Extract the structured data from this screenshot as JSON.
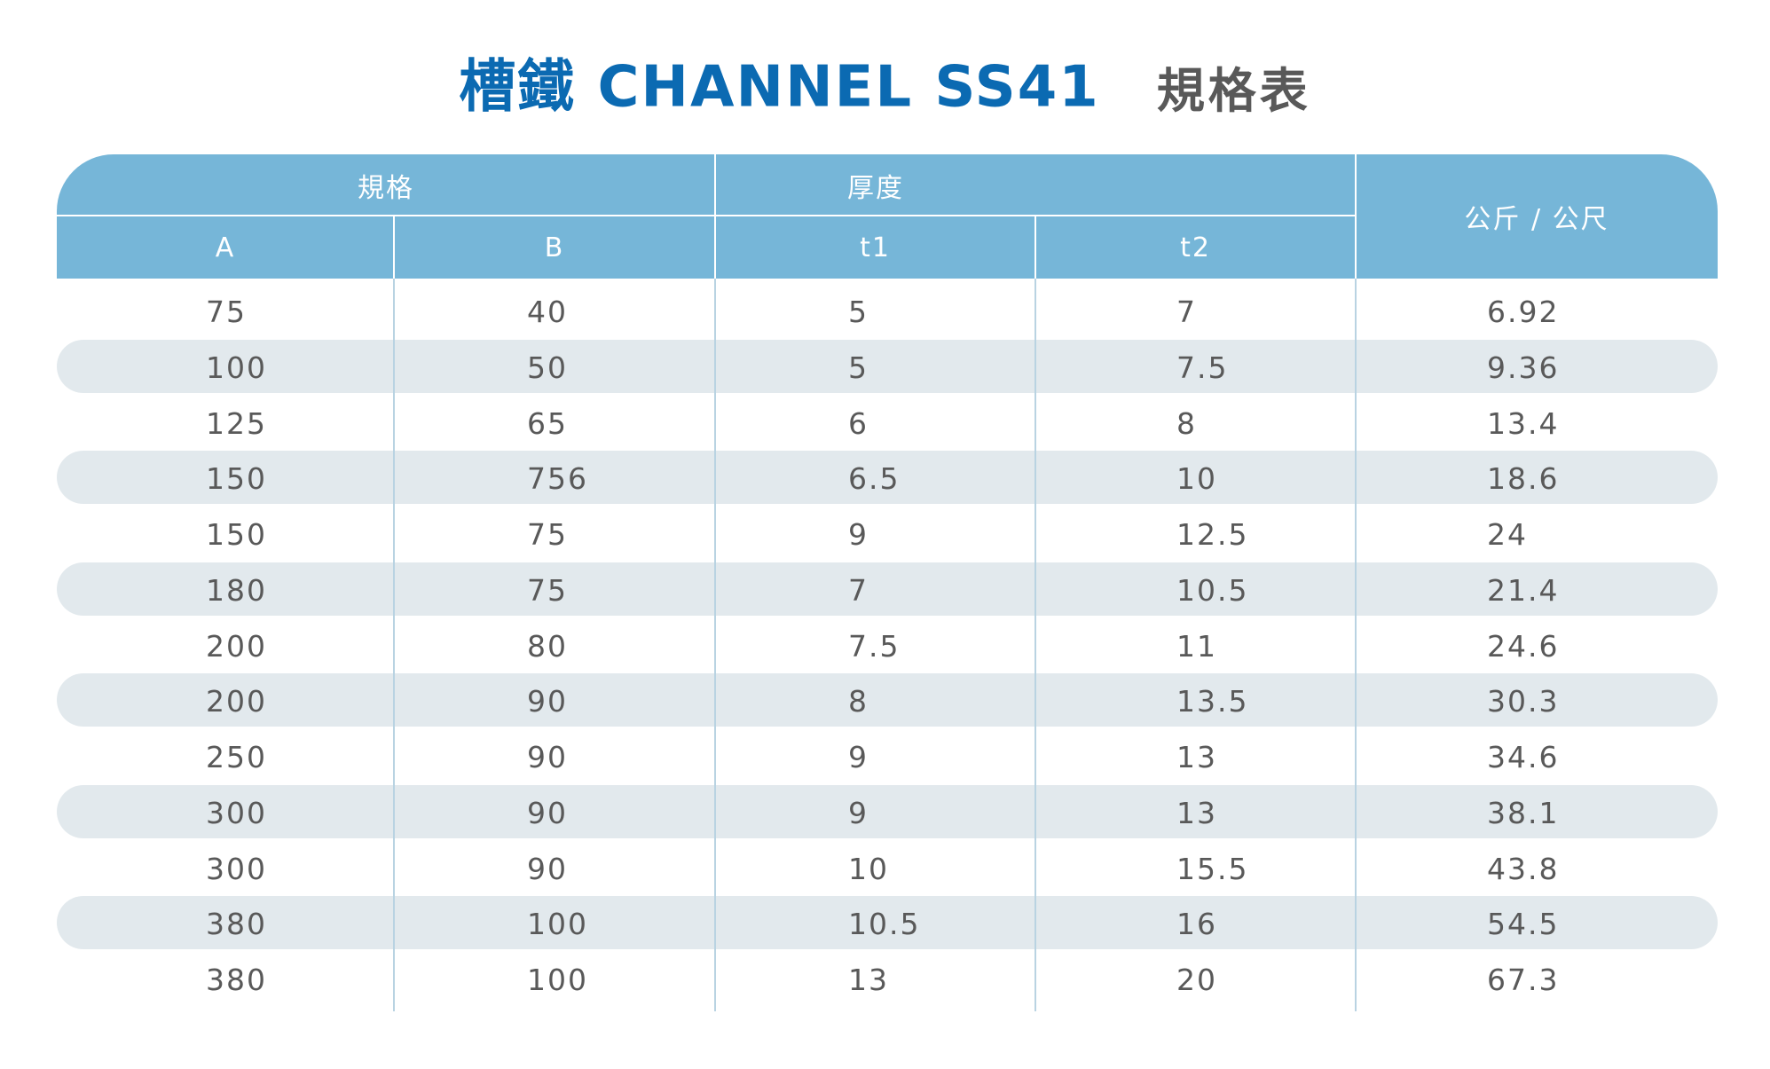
{
  "title": {
    "main": "槽鐵  CHANNEL SS41",
    "sub": "規格表"
  },
  "header": {
    "group_spec": "規格",
    "group_thickness": "厚度",
    "col_a": "A",
    "col_b": "B",
    "col_t1": "t1",
    "col_t2": "t2",
    "col_weight": "公斤 / 公尺"
  },
  "rows": [
    {
      "a": "75",
      "b": "40",
      "t1": "5",
      "t2": "7",
      "w": "6.92"
    },
    {
      "a": "100",
      "b": "50",
      "t1": "5",
      "t2": "7.5",
      "w": "9.36"
    },
    {
      "a": "125",
      "b": "65",
      "t1": "6",
      "t2": "8",
      "w": "13.4"
    },
    {
      "a": "150",
      "b": "756",
      "t1": "6.5",
      "t2": "10",
      "w": "18.6"
    },
    {
      "a": "150",
      "b": "75",
      "t1": "9",
      "t2": "12.5",
      "w": "24"
    },
    {
      "a": "180",
      "b": "75",
      "t1": "7",
      "t2": "10.5",
      "w": "21.4"
    },
    {
      "a": "200",
      "b": "80",
      "t1": "7.5",
      "t2": "11",
      "w": "24.6"
    },
    {
      "a": "200",
      "b": "90",
      "t1": "8",
      "t2": "13.5",
      "w": "30.3"
    },
    {
      "a": "250",
      "b": "90",
      "t1": "9",
      "t2": "13",
      "w": "34.6"
    },
    {
      "a": "300",
      "b": "90",
      "t1": "9",
      "t2": "13",
      "w": "38.1"
    },
    {
      "a": "300",
      "b": "90",
      "t1": "10",
      "t2": "15.5",
      "w": "43.8"
    },
    {
      "a": "380",
      "b": "100",
      "t1": "10.5",
      "t2": "16",
      "w": "54.5"
    },
    {
      "a": "380",
      "b": "100",
      "t1": "13",
      "t2": "20",
      "w": "67.3"
    }
  ],
  "colors": {
    "title_blue": "#0b6ab2",
    "header_blue": "#76b6d8",
    "stripe_gray": "#e2e9ed",
    "text_gray": "#595959"
  }
}
